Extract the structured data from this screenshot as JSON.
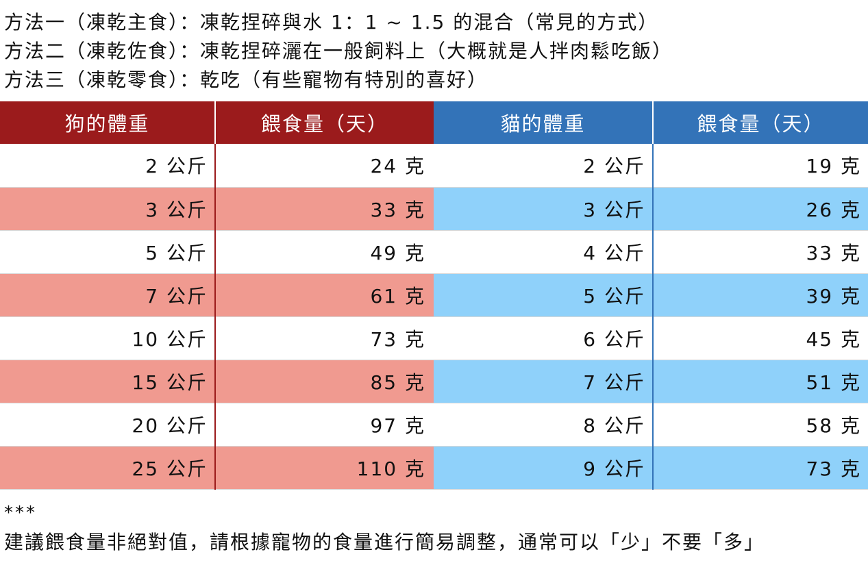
{
  "intro": {
    "lines": [
      "方法一（凍乾主食）：凍乾捏碎與水 1：1 ~ 1.5 的混合（常見的方式）",
      "方法二（凍乾佐食）：凍乾捏碎灑在一般飼料上（大概就是人拌肉鬆吃飯）",
      "方法三（凍乾零食）：乾吃（有些寵物有特別的喜好）"
    ]
  },
  "table": {
    "headers": [
      "狗的體重",
      "餵食量（天）",
      "貓的體重",
      "餵食量（天）"
    ],
    "rows": [
      [
        "2 公斤",
        "24 克",
        "2 公斤",
        "19 克"
      ],
      [
        "3 公斤",
        "33 克",
        "3 公斤",
        "26 克"
      ],
      [
        "5 公斤",
        "49 克",
        "4 公斤",
        "33 克"
      ],
      [
        "7 公斤",
        "61 克",
        "5 公斤",
        "39 克"
      ],
      [
        "10 公斤",
        "73 克",
        "6 公斤",
        "45 克"
      ],
      [
        "15 公斤",
        "85 克",
        "7 公斤",
        "51 克"
      ],
      [
        "20 公斤",
        "97 克",
        "8 公斤",
        "58 克"
      ],
      [
        "25 公斤",
        "110 克",
        "9 公斤",
        "73 克"
      ]
    ],
    "colors": {
      "dog_header": "#9b1b1c",
      "cat_header": "#3373b8",
      "dog_band": "#f09a90",
      "cat_band": "#8fd1fa"
    }
  },
  "footer": {
    "stars": "***",
    "note": "建議餵食量非絕對值，請根據寵物的食量進行簡易調整，通常可以「少」不要「多」"
  }
}
